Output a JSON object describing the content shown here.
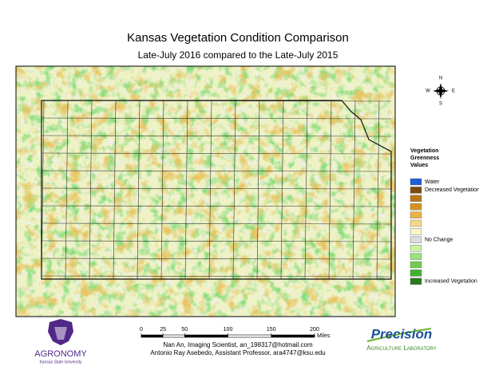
{
  "header": {
    "title": "Kansas Vegetation Condition Comparison",
    "subtitle": "Late-July 2016 compared to the Late-July 2015"
  },
  "compass": {
    "north": "N",
    "east": "E",
    "south": "S",
    "west": "W"
  },
  "legend": {
    "title": [
      "Vegetation",
      "Greenness",
      "Values"
    ],
    "items": [
      {
        "color": "#1f5fd6",
        "label": "Water"
      },
      {
        "color": "#7a4a12",
        "label": "Decreased Vegetation"
      },
      {
        "color": "#b87818"
      },
      {
        "color": "#d4921f"
      },
      {
        "color": "#e8b446"
      },
      {
        "color": "#f2d98c"
      },
      {
        "color": "#fbf3c8"
      },
      {
        "color": "#dcdcdc",
        "label": "No Change"
      },
      {
        "color": "#c8f2a0"
      },
      {
        "color": "#9ce07a"
      },
      {
        "color": "#6fcc50"
      },
      {
        "color": "#42b030"
      },
      {
        "color": "#2a7a1e",
        "label": "Increased Vegetation"
      }
    ]
  },
  "scale_bar": {
    "ticks": [
      0,
      25,
      50,
      100,
      150,
      200
    ],
    "unit": "Miles"
  },
  "credits": [
    "Nan An, Imaging Scientist, an_198317@hotmail.com",
    "Antonio Ray Asebedo, Assistant Professor, ara4747@ksu.edu"
  ],
  "logos": {
    "left": {
      "name": "AGRONOMY",
      "subtitle": "Kansas State University"
    },
    "right": {
      "name": "Precision",
      "subtitle": "Agriculture Laboratory"
    }
  }
}
